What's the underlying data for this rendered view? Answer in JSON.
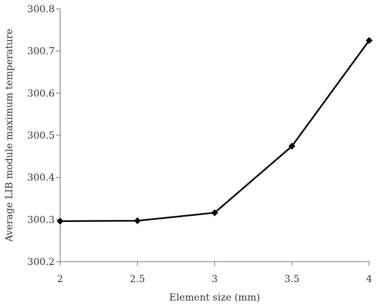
{
  "chart_data": {
    "type": "line",
    "xlabel": "Element size (mm)",
    "ylabel": "Average LIB module maximum temperature",
    "x": [
      2,
      2.5,
      3,
      3.5,
      4
    ],
    "series": [
      {
        "values": [
          300.296,
          300.297,
          300.316,
          300.474,
          300.725
        ]
      }
    ],
    "xlim": [
      2,
      4
    ],
    "ylim": [
      300.2,
      300.8
    ],
    "xticks": [
      "2",
      "2.5",
      "3",
      "3.5",
      "4"
    ],
    "yticks": [
      "300.2",
      "300.3",
      "300.4",
      "300.5",
      "300.6",
      "300.7",
      "300.8"
    ],
    "grid": false,
    "marker": "diamond",
    "line_color": "#000000"
  }
}
